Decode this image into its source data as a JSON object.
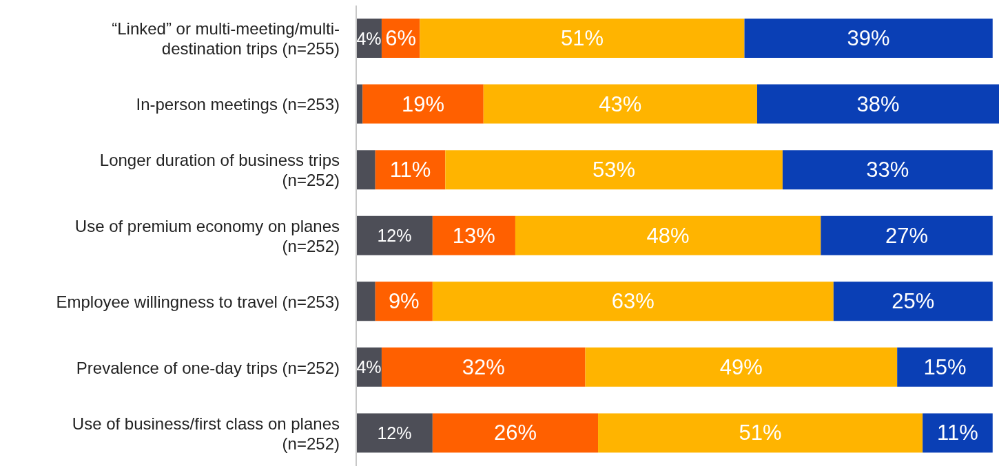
{
  "chart_data": {
    "type": "bar",
    "orientation": "horizontal",
    "stacked": true,
    "legend": false,
    "grid": false,
    "categories": [
      "“Linked” or multi-meeting/multi-destination trips (n=255)",
      "In-person meetings (n=253)",
      "Longer duration of business trips (n=252)",
      "Use of premium economy on planes (n=252)",
      "Employee willingness to travel (n=253)",
      "Prevalence of one-day trips (n=252)",
      "Use of business/first class on planes (n=252)"
    ],
    "series": [
      {
        "color": "#4d4e57",
        "values": [
          4,
          1,
          3,
          12,
          3,
          4,
          12
        ],
        "value_labels": [
          "4%",
          null,
          null,
          "12%",
          null,
          "4%",
          "12%"
        ]
      },
      {
        "color": "#ff6000",
        "values": [
          6,
          19,
          11,
          13,
          9,
          32,
          26
        ],
        "value_labels": [
          "6%",
          "19%",
          "11%",
          "13%",
          "9%",
          "32%",
          "26%"
        ]
      },
      {
        "color": "#ffb400",
        "values": [
          51,
          43,
          53,
          48,
          63,
          49,
          51
        ],
        "value_labels": [
          "51%",
          "43%",
          "53%",
          "48%",
          "63%",
          "49%",
          "51%"
        ]
      },
      {
        "color": "#0a3fb5",
        "values": [
          39,
          38,
          33,
          27,
          25,
          15,
          11
        ],
        "value_labels": [
          "39%",
          "38%",
          "33%",
          "27%",
          "25%",
          "15%",
          "11%"
        ]
      }
    ]
  }
}
